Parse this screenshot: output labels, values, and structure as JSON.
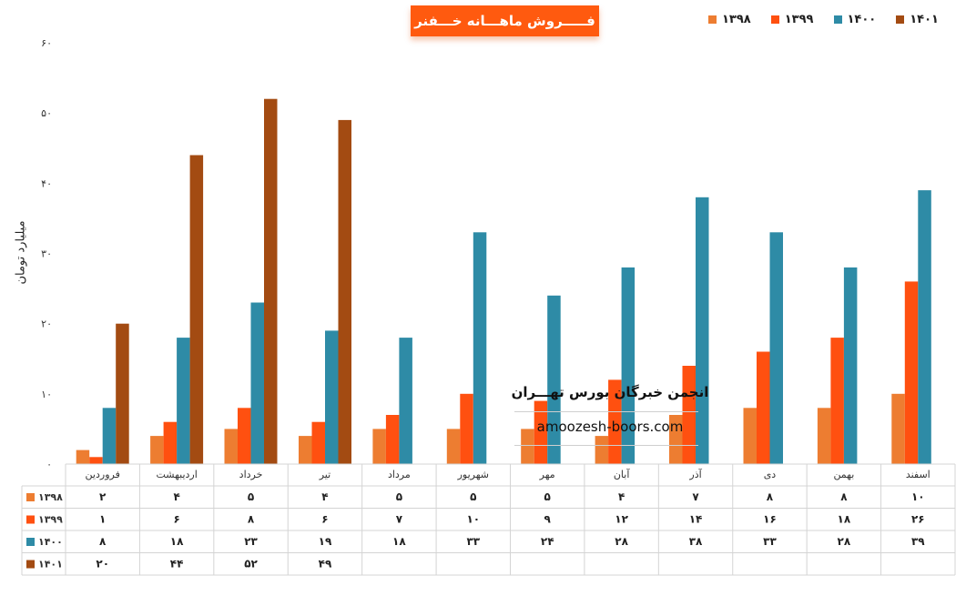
{
  "chart_data": {
    "type": "bar",
    "title": "فـــــروش ماهـــانه خـــفنر",
    "ylabel": "میلیارد تومان",
    "ylim": [
      0,
      60
    ],
    "yticks": [
      "۰",
      "۱۰",
      "۲۰",
      "۳۰",
      "۴۰",
      "۵۰",
      "۶۰"
    ],
    "yticks_values": [
      0,
      10,
      20,
      30,
      40,
      50,
      60
    ],
    "legend_position": "top-right",
    "categories": [
      "فروردین",
      "اردیبهشت",
      "خرداد",
      "تیر",
      "مرداد",
      "شهریور",
      "مهر",
      "آبان",
      "آذر",
      "دی",
      "بهمن",
      "اسفند"
    ],
    "series": [
      {
        "name": "۱۳۹۸",
        "color": "#ed7d31",
        "values": [
          2,
          4,
          5,
          4,
          5,
          5,
          5,
          4,
          7,
          8,
          8,
          10
        ],
        "labels": [
          "۲",
          "۴",
          "۵",
          "۴",
          "۵",
          "۵",
          "۵",
          "۴",
          "۷",
          "۸",
          "۸",
          "۱۰"
        ]
      },
      {
        "name": "۱۳۹۹",
        "color": "#ff5010",
        "values": [
          1,
          6,
          8,
          6,
          7,
          10,
          9,
          12,
          14,
          16,
          18,
          26
        ],
        "labels": [
          "۱",
          "۶",
          "۸",
          "۶",
          "۷",
          "۱۰",
          "۹",
          "۱۲",
          "۱۴",
          "۱۶",
          "۱۸",
          "۲۶"
        ]
      },
      {
        "name": "۱۴۰۰",
        "color": "#2e8ba6",
        "values": [
          8,
          18,
          23,
          19,
          18,
          33,
          24,
          28,
          38,
          33,
          28,
          39
        ],
        "labels": [
          "۸",
          "۱۸",
          "۲۳",
          "۱۹",
          "۱۸",
          "۳۳",
          "۲۴",
          "۲۸",
          "۳۸",
          "۳۳",
          "۲۸",
          "۳۹"
        ]
      },
      {
        "name": "۱۴۰۱",
        "color": "#a34b12",
        "values": [
          20,
          44,
          52,
          49,
          null,
          null,
          null,
          null,
          null,
          null,
          null,
          null
        ],
        "labels": [
          "۲۰",
          "۴۴",
          "۵۲",
          "۴۹",
          "",
          "",
          "",
          "",
          "",
          "",
          "",
          ""
        ]
      }
    ]
  },
  "watermark": {
    "title": "انجمن خبرگان بورس تهـــران",
    "url": "amoozesh-boors.com"
  }
}
